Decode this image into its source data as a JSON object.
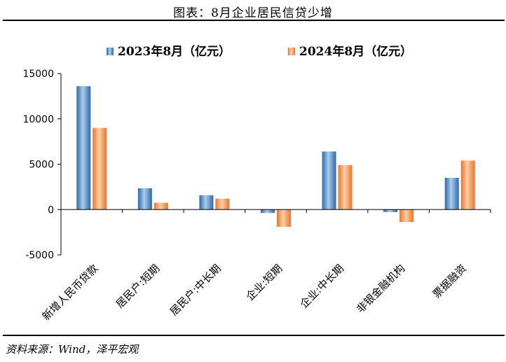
{
  "header": {
    "title": "图表：8月企业居民信贷少增"
  },
  "footer": {
    "source": "资料来源：Wind，泽平宏观"
  },
  "colors": {
    "series_2023": "#3d7fc0",
    "series_2024": "#f2893c",
    "axis": "#000000"
  },
  "chart_data": {
    "type": "bar",
    "title": "图表：8月企业居民信贷少增",
    "xlabel": "",
    "ylabel": "",
    "ylim": [
      -5000,
      15000
    ],
    "yticks": [
      -5000,
      0,
      5000,
      10000,
      15000
    ],
    "ytick_labels": [
      "-5000",
      "0",
      "5000",
      "10000",
      "15000"
    ],
    "grid": false,
    "legend": "top",
    "categories": [
      "新增人民币贷款",
      "居民户:短期",
      "居民户:中长期",
      "企业:短期",
      "企业:中长期",
      "非银金融机构",
      "票据融资"
    ],
    "series": [
      {
        "name": "2023年8月（亿元）",
        "values": [
          13600,
          2350,
          1580,
          -380,
          6400,
          -280,
          3500
        ]
      },
      {
        "name": "2024年8月（亿元）",
        "values": [
          9000,
          750,
          1200,
          -1900,
          4900,
          -1380,
          5400
        ]
      }
    ]
  }
}
